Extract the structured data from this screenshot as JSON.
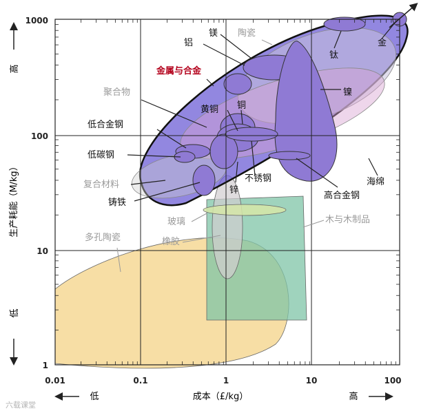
{
  "chart_data": {
    "type": "scatter",
    "x_scale": "log",
    "y_scale": "log",
    "xlim": [
      0.01,
      100
    ],
    "ylim": [
      1,
      1000
    ],
    "x_ticks": [
      "0.01",
      "0.1",
      "1",
      "10",
      "100"
    ],
    "y_ticks": [
      "1",
      "10",
      "100",
      "1000"
    ],
    "xlabel": "成本（£/kg）",
    "ylabel": "生产耗能（M/kg）",
    "x_low_label": "低",
    "x_high_label": "高",
    "y_low_label": "低",
    "y_high_label": "高",
    "grid": true,
    "envelopes": [
      {
        "name": "金属与合金",
        "color": "#6e5fd6"
      },
      {
        "name": "聚合物",
        "color": "#d9a3d3"
      },
      {
        "name": "陶瓷",
        "color": "#c9c2dd"
      },
      {
        "name": "复合材料",
        "color": "#cfcfcf"
      },
      {
        "name": "玻璃",
        "color": "#d6e6a8"
      },
      {
        "name": "橡胶",
        "color": "#d2cdd0"
      },
      {
        "name": "木与木制品",
        "color": "#7fc4a7"
      },
      {
        "name": "多孔陶瓷",
        "color": "#f6d895"
      }
    ],
    "materials": [
      {
        "name": "金",
        "x": 110,
        "y": 1000
      },
      {
        "name": "钛",
        "x": 30,
        "y": 800
      },
      {
        "name": "镍",
        "x": 8,
        "y": 120
      },
      {
        "name": "铝",
        "x": 2,
        "y": 550
      },
      {
        "name": "镁",
        "x": 3,
        "y": 380
      },
      {
        "name": "铜",
        "x": 1.6,
        "y": 220
      },
      {
        "name": "黄铜",
        "x": 1.3,
        "y": 110
      },
      {
        "name": "低合金钢",
        "x": 0.5,
        "y": 80
      },
      {
        "name": "低碳钢",
        "x": 0.5,
        "y": 70
      },
      {
        "name": "铸铁",
        "x": 0.4,
        "y": 40
      },
      {
        "name": "锌",
        "x": 1.2,
        "y": 70
      },
      {
        "name": "不锈钢",
        "x": 6,
        "y": 80
      },
      {
        "name": "高合金钢",
        "x": 7,
        "y": 75
      },
      {
        "name": "海绵",
        "x": 80,
        "y": 90
      }
    ]
  },
  "labels": {
    "gold": "金",
    "titanium": "钛",
    "nickel": "镍",
    "aluminum": "铝",
    "magnesium": "镁",
    "ceramics": "陶瓷",
    "metals": "金属与合金",
    "polymers": "聚合物",
    "copper": "铜",
    "brass": "黄铜",
    "low_alloy_steel": "低合金钢",
    "low_carbon_steel": "低碳钢",
    "composites": "复合材料",
    "cast_iron": "铸铁",
    "zinc": "锌",
    "stainless": "不锈钢",
    "high_alloy_steel": "高合金钢",
    "foam": "海绵",
    "glass": "玻璃",
    "wood": "木与木制品",
    "porous_ceramics": "多孔陶瓷",
    "rubber": "橡胶"
  },
  "watermark": "六载课堂",
  "colors": {
    "metal_envelope": "#6e5fd6",
    "metal_label": "#b3001b",
    "gray_label": "#9a9a9a"
  }
}
